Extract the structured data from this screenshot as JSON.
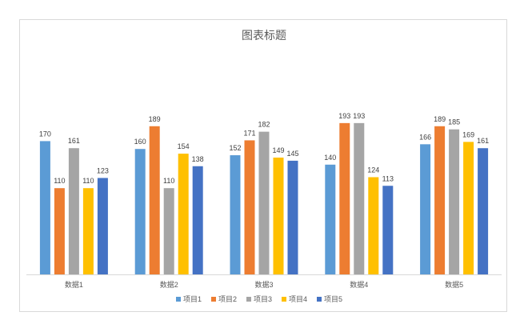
{
  "chart_data": {
    "type": "bar",
    "title": "图表标题",
    "categories": [
      "数据1",
      "数据2",
      "数据3",
      "数据4",
      "数据5"
    ],
    "series": [
      {
        "name": "项目1",
        "color": "#5B9BD5",
        "values": [
          170,
          160,
          152,
          140,
          166
        ]
      },
      {
        "name": "项目2",
        "color": "#ED7D31",
        "values": [
          110,
          189,
          171,
          193,
          189
        ]
      },
      {
        "name": "项目3",
        "color": "#A5A5A5",
        "values": [
          161,
          110,
          182,
          193,
          185
        ]
      },
      {
        "name": "项目4",
        "color": "#FFC000",
        "values": [
          110,
          154,
          149,
          124,
          169
        ]
      },
      {
        "name": "项目5",
        "color": "#4472C4",
        "values": [
          123,
          138,
          145,
          113,
          161
        ]
      }
    ],
    "ylim": [
      0,
      200
    ],
    "grid": false,
    "legend": "bottom",
    "data_labels": true
  }
}
